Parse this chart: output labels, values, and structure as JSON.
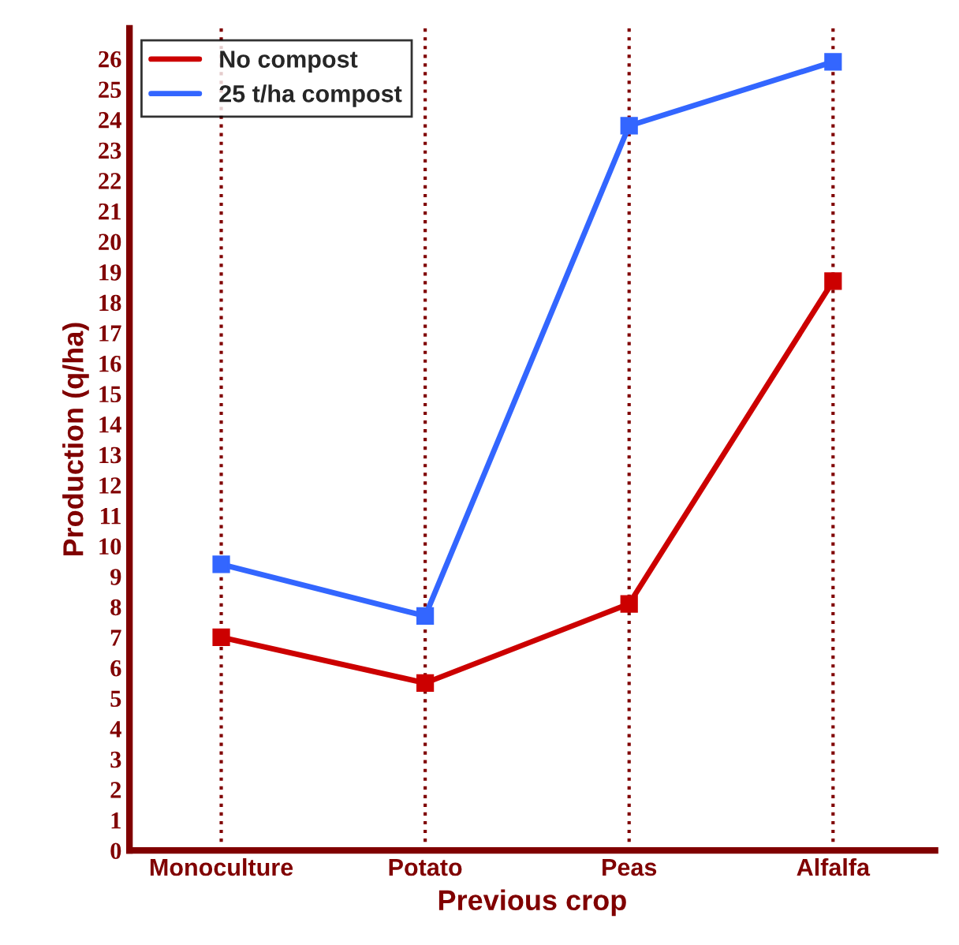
{
  "chart_data": {
    "type": "line",
    "xlabel": "Previous crop",
    "ylabel": "Production (q/ha)",
    "categories": [
      "Monoculture",
      "Potato",
      "Peas",
      "Alfalfa"
    ],
    "series": [
      {
        "name": "No compost",
        "color": "#cc0000",
        "values": [
          7.0,
          5.5,
          8.1,
          18.7
        ]
      },
      {
        "name": "25 t/ha compost",
        "color": "#3366ff",
        "values": [
          9.4,
          7.7,
          23.8,
          25.9
        ]
      }
    ],
    "ylim": [
      0,
      27
    ],
    "yticks": [
      0,
      1,
      2,
      3,
      4,
      5,
      6,
      7,
      8,
      9,
      10,
      11,
      12,
      13,
      14,
      15,
      16,
      17,
      18,
      19,
      20,
      21,
      22,
      23,
      24,
      25,
      26
    ],
    "grid": "x",
    "legend": "top left",
    "marker": "square",
    "line_style": "solid"
  }
}
